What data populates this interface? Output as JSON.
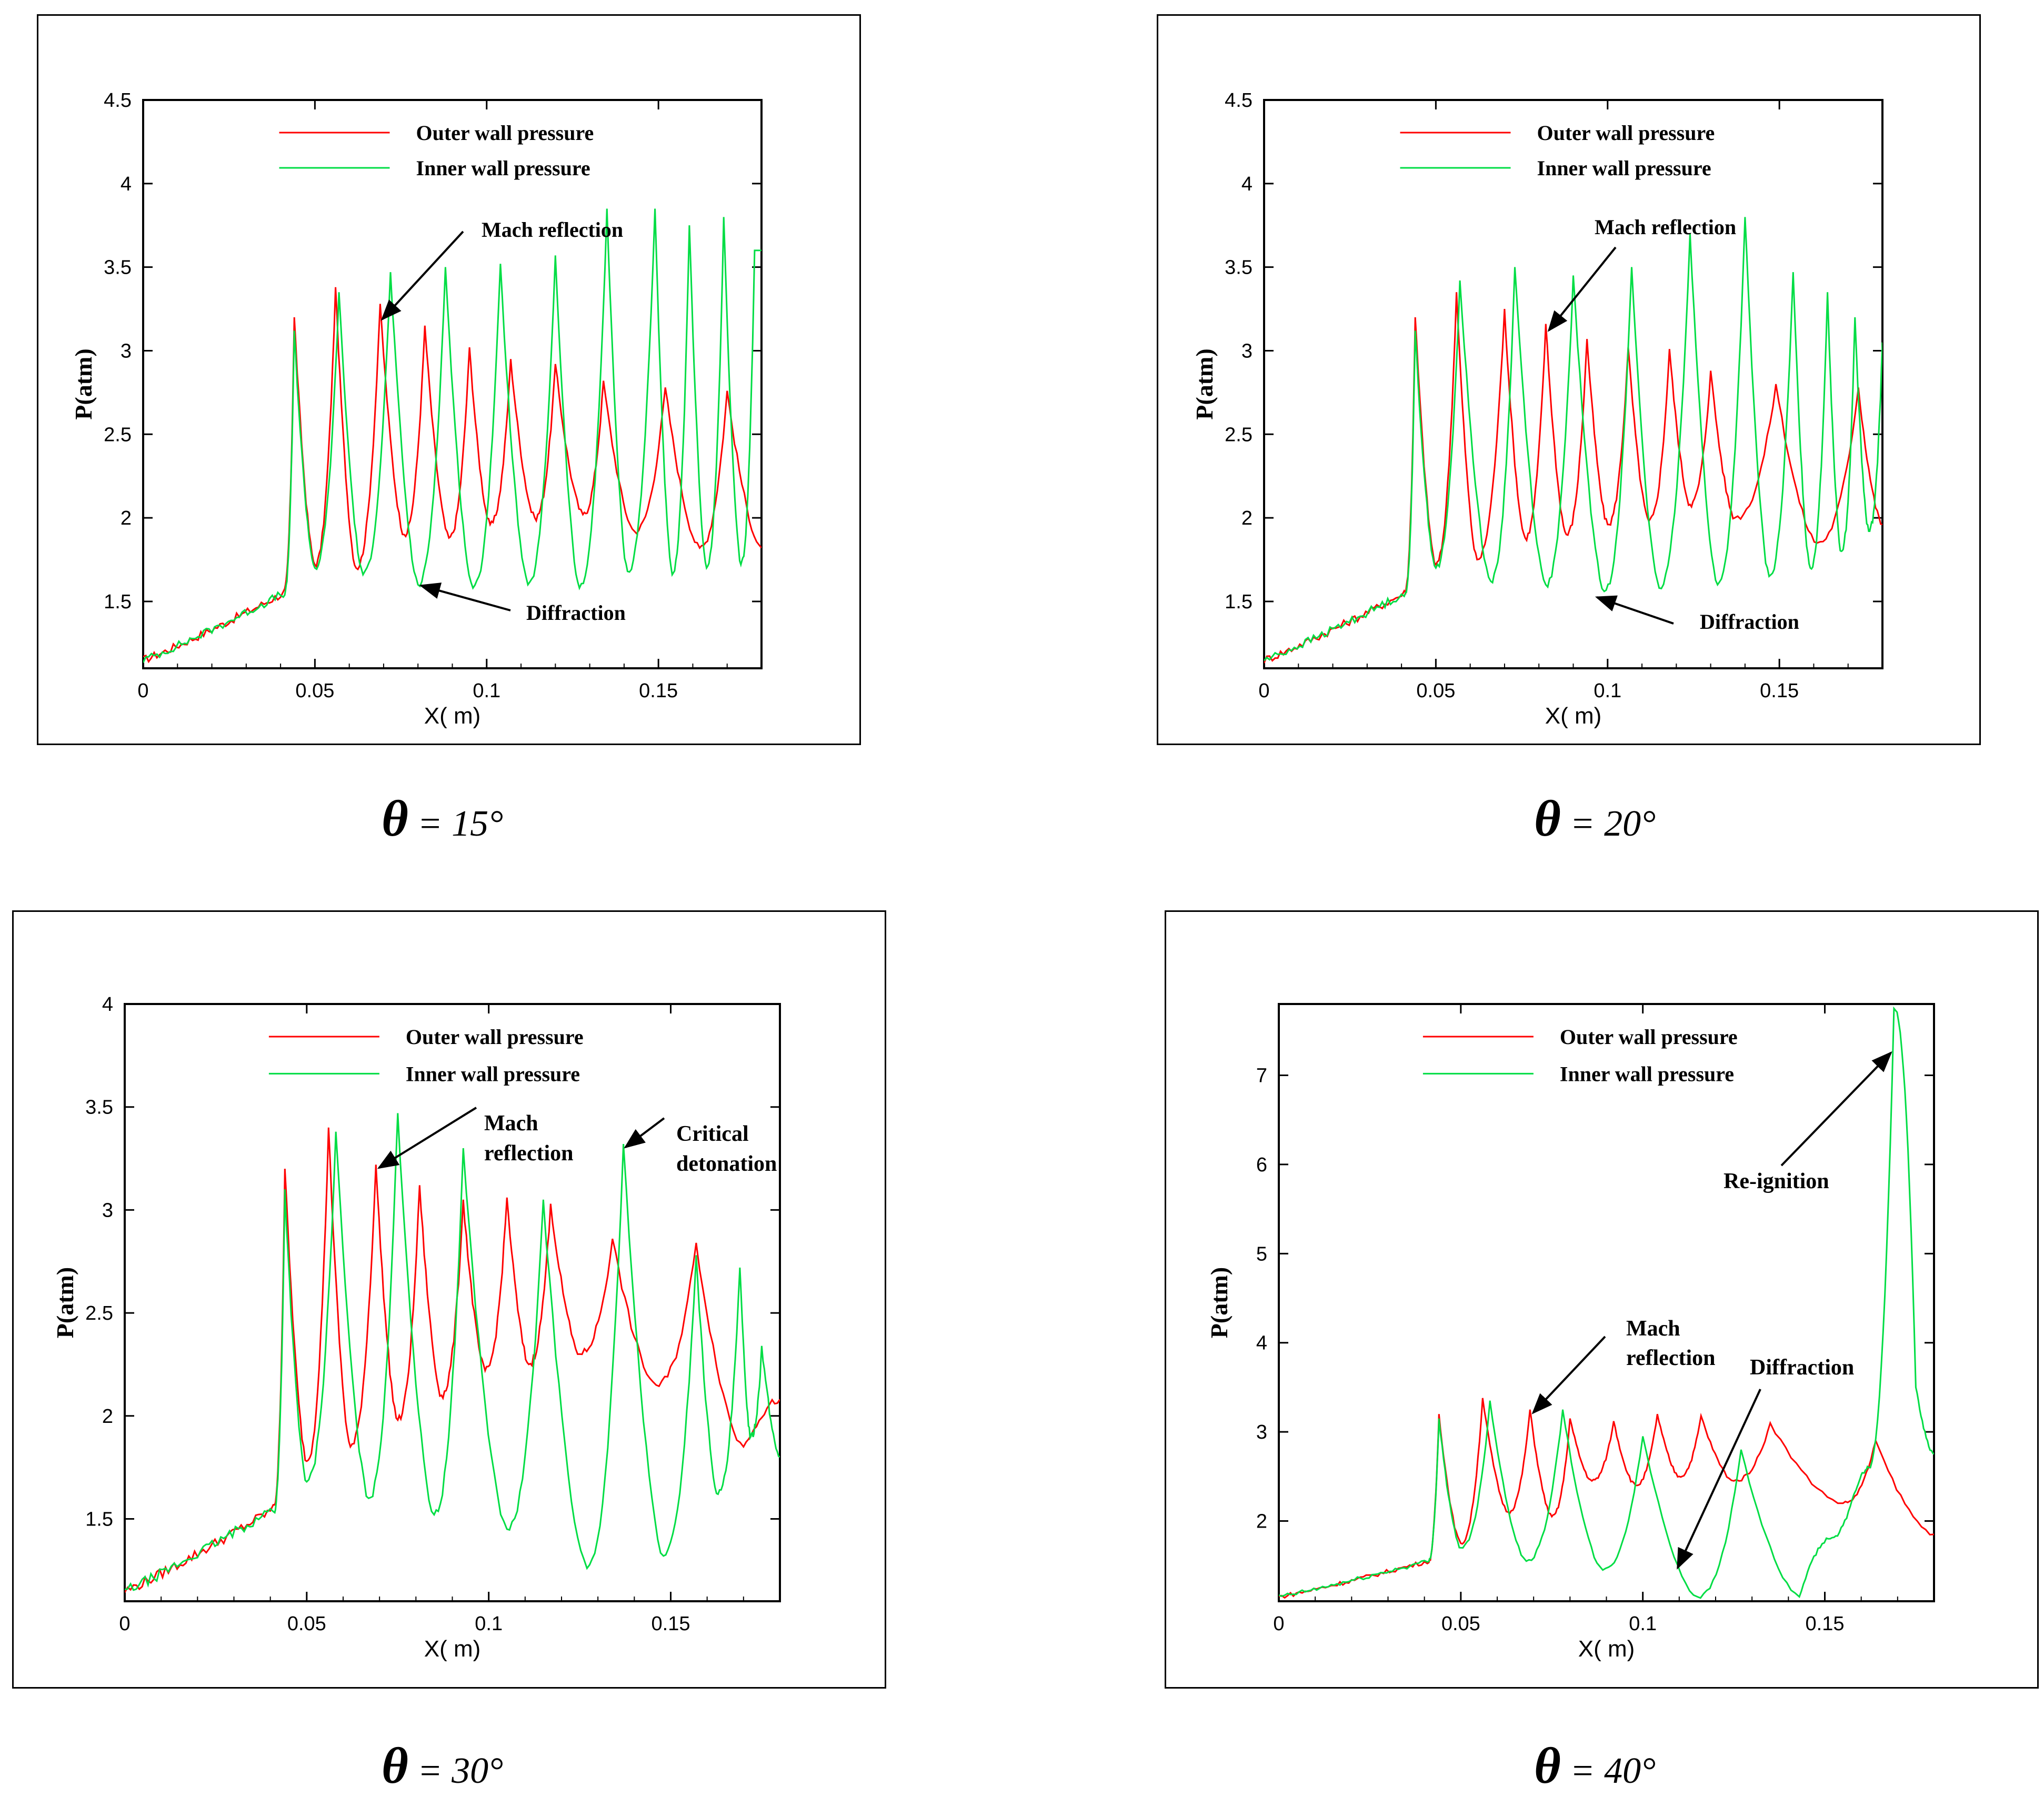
{
  "chart_data": [
    {
      "type": "line",
      "caption_symbol": "θ",
      "caption_value": " = 15°",
      "xlabel": "X( m)",
      "ylabel": "P(atm)",
      "xlim": [
        0,
        0.18
      ],
      "ylim": [
        1.1,
        4.5
      ],
      "xticks": [
        0,
        0.05,
        0.1,
        0.15
      ],
      "xtick_labels": [
        "0",
        "0.05",
        "0.1",
        "0.15"
      ],
      "yticks": [
        1.5,
        2,
        2.5,
        3,
        3.5,
        4,
        4.5
      ],
      "ytick_labels": [
        "1.5",
        "2",
        "2.5",
        "3",
        "3.5",
        "4",
        "4.5"
      ],
      "legend": [
        "Outer wall pressure",
        "Inner wall pressure"
      ],
      "series": [
        {
          "name": "Outer wall pressure",
          "color": "#ff0000",
          "peaks": [
            [
              0.044,
              3.2
            ],
            [
              0.056,
              3.38
            ],
            [
              0.069,
              3.28
            ],
            [
              0.082,
              3.15
            ],
            [
              0.095,
              3.02
            ],
            [
              0.107,
              2.95
            ],
            [
              0.12,
              2.92
            ],
            [
              0.134,
              2.82
            ],
            [
              0.152,
              2.78
            ],
            [
              0.17,
              2.76
            ]
          ],
          "troughs": [
            [
              0.05,
              1.72
            ],
            [
              0.062,
              1.7
            ],
            [
              0.076,
              1.9
            ],
            [
              0.089,
              1.88
            ],
            [
              0.101,
              1.96
            ],
            [
              0.114,
              2.0
            ],
            [
              0.128,
              2.02
            ],
            [
              0.143,
              1.92
            ],
            [
              0.162,
              1.82
            ],
            [
              0.18,
              1.82
            ]
          ]
        },
        {
          "name": "Inner wall pressure",
          "color": "#00dd44",
          "peaks": [
            [
              0.044,
              3.12
            ],
            [
              0.057,
              3.35
            ],
            [
              0.072,
              3.47
            ],
            [
              0.088,
              3.5
            ],
            [
              0.104,
              3.52
            ],
            [
              0.12,
              3.57
            ],
            [
              0.135,
              3.85
            ],
            [
              0.149,
              3.85
            ],
            [
              0.159,
              3.75
            ],
            [
              0.169,
              3.8
            ],
            [
              0.178,
              3.6
            ]
          ],
          "troughs": [
            [
              0.05,
              1.7
            ],
            [
              0.064,
              1.66
            ],
            [
              0.08,
              1.6
            ],
            [
              0.096,
              1.58
            ],
            [
              0.112,
              1.6
            ],
            [
              0.127,
              1.58
            ],
            [
              0.141,
              1.68
            ],
            [
              0.154,
              1.66
            ],
            [
              0.164,
              1.7
            ],
            [
              0.174,
              1.72
            ]
          ]
        }
      ],
      "annotations": [
        {
          "text": "Mach reflection",
          "target": [
            0.069,
            3.22
          ]
        },
        {
          "text": "Diffraction",
          "target": [
            0.08,
            1.62
          ]
        }
      ]
    },
    {
      "type": "line",
      "caption_symbol": "θ",
      "caption_value": " = 20°",
      "xlabel": "X( m)",
      "ylabel": "P(atm)",
      "xlim": [
        0,
        0.18
      ],
      "ylim": [
        1.1,
        4.5
      ],
      "xticks": [
        0,
        0.05,
        0.1,
        0.15
      ],
      "xtick_labels": [
        "0",
        "0.05",
        "0.1",
        "0.15"
      ],
      "yticks": [
        1.5,
        2,
        2.5,
        3,
        3.5,
        4,
        4.5
      ],
      "ytick_labels": [
        "1.5",
        "2",
        "2.5",
        "3",
        "3.5",
        "4",
        "4.5"
      ],
      "legend": [
        "Outer wall pressure",
        "Inner wall pressure"
      ],
      "series": [
        {
          "name": "Outer wall pressure",
          "color": "#ff0000",
          "peaks": [
            [
              0.044,
              3.2
            ],
            [
              0.056,
              3.35
            ],
            [
              0.07,
              3.25
            ],
            [
              0.082,
              3.16
            ],
            [
              0.094,
              3.07
            ],
            [
              0.106,
              3.02
            ],
            [
              0.118,
              3.01
            ],
            [
              0.13,
              2.88
            ],
            [
              0.149,
              2.8
            ],
            [
              0.173,
              2.78
            ]
          ],
          "troughs": [
            [
              0.05,
              1.72
            ],
            [
              0.062,
              1.75
            ],
            [
              0.076,
              1.88
            ],
            [
              0.088,
              1.9
            ],
            [
              0.1,
              1.96
            ],
            [
              0.112,
              1.98
            ],
            [
              0.124,
              2.08
            ],
            [
              0.137,
              2.0
            ],
            [
              0.161,
              1.85
            ],
            [
              0.18,
              1.96
            ]
          ]
        },
        {
          "name": "Inner wall pressure",
          "color": "#00dd44",
          "peaks": [
            [
              0.044,
              3.12
            ],
            [
              0.057,
              3.42
            ],
            [
              0.073,
              3.5
            ],
            [
              0.09,
              3.45
            ],
            [
              0.107,
              3.5
            ],
            [
              0.124,
              3.7
            ],
            [
              0.14,
              3.8
            ],
            [
              0.154,
              3.47
            ],
            [
              0.164,
              3.35
            ],
            [
              0.172,
              3.2
            ],
            [
              0.18,
              3.05
            ]
          ],
          "troughs": [
            [
              0.05,
              1.7
            ],
            [
              0.066,
              1.62
            ],
            [
              0.082,
              1.6
            ],
            [
              0.099,
              1.56
            ],
            [
              0.115,
              1.58
            ],
            [
              0.132,
              1.6
            ],
            [
              0.147,
              1.65
            ],
            [
              0.159,
              1.7
            ],
            [
              0.168,
              1.8
            ],
            [
              0.176,
              1.92
            ]
          ]
        }
      ],
      "annotations": [
        {
          "text": "Mach reflection",
          "target": [
            0.082,
            3.16
          ]
        },
        {
          "text": "Diffraction",
          "target": [
            0.096,
            1.55
          ]
        }
      ]
    },
    {
      "type": "line",
      "caption_symbol": "θ",
      "caption_value": " = 30°",
      "xlabel": "X( m)",
      "ylabel": "P(atm)",
      "xlim": [
        0,
        0.18
      ],
      "ylim": [
        1.1,
        4.0
      ],
      "xticks": [
        0,
        0.05,
        0.1,
        0.15
      ],
      "xtick_labels": [
        "0",
        "0.05",
        "0.1",
        "0.15"
      ],
      "yticks": [
        1.5,
        2,
        2.5,
        3,
        3.5,
        4
      ],
      "ytick_labels": [
        "1.5",
        "2",
        "2.5",
        "3",
        "3.5",
        "4"
      ],
      "legend": [
        "Outer wall pressure",
        "Inner wall pressure"
      ],
      "series": [
        {
          "name": "Outer wall pressure",
          "color": "#ff0000",
          "peaks": [
            [
              0.044,
              3.2
            ],
            [
              0.056,
              3.4
            ],
            [
              0.069,
              3.22
            ],
            [
              0.081,
              3.12
            ],
            [
              0.093,
              3.05
            ],
            [
              0.105,
              3.06
            ],
            [
              0.117,
              3.03
            ],
            [
              0.134,
              2.86
            ],
            [
              0.157,
              2.84
            ]
          ],
          "troughs": [
            [
              0.05,
              1.78
            ],
            [
              0.062,
              1.85
            ],
            [
              0.075,
              1.98
            ],
            [
              0.087,
              2.1
            ],
            [
              0.099,
              2.22
            ],
            [
              0.111,
              2.25
            ],
            [
              0.125,
              2.3
            ],
            [
              0.146,
              2.15
            ],
            [
              0.17,
              1.85
            ],
            [
              0.18,
              2.08
            ]
          ]
        },
        {
          "name": "Inner wall pressure",
          "color": "#00dd44",
          "peaks": [
            [
              0.044,
              3.1
            ],
            [
              0.058,
              3.38
            ],
            [
              0.075,
              3.47
            ],
            [
              0.093,
              3.3
            ],
            [
              0.115,
              3.05
            ],
            [
              0.137,
              3.32
            ],
            [
              0.157,
              2.78
            ],
            [
              0.169,
              2.72
            ],
            [
              0.175,
              2.34
            ]
          ],
          "troughs": [
            [
              0.05,
              1.68
            ],
            [
              0.067,
              1.6
            ],
            [
              0.085,
              1.52
            ],
            [
              0.105,
              1.45
            ],
            [
              0.127,
              1.26
            ],
            [
              0.148,
              1.32
            ],
            [
              0.163,
              1.62
            ],
            [
              0.172,
              1.9
            ],
            [
              0.18,
              1.8
            ]
          ]
        }
      ],
      "annotations": [
        {
          "text_lines": [
            "Mach",
            "reflection"
          ],
          "target": [
            0.069,
            3.22
          ]
        },
        {
          "text_lines": [
            "Critical",
            "detonation"
          ],
          "target": [
            0.137,
            3.32
          ]
        }
      ]
    },
    {
      "type": "line",
      "caption_symbol": "θ",
      "caption_value": " = 40°",
      "xlabel": "X( m)",
      "ylabel": "P(atm)",
      "xlim": [
        0,
        0.18
      ],
      "ylim": [
        1.1,
        7.8
      ],
      "xticks": [
        0,
        0.05,
        0.1,
        0.15
      ],
      "xtick_labels": [
        "0",
        "0.05",
        "0.1",
        "0.15"
      ],
      "yticks": [
        2,
        3,
        4,
        5,
        6,
        7
      ],
      "ytick_labels": [
        "2",
        "3",
        "4",
        "5",
        "6",
        "7"
      ],
      "legend": [
        "Outer wall pressure",
        "Inner wall pressure"
      ],
      "series": [
        {
          "name": "Outer wall pressure",
          "color": "#ff0000",
          "peaks": [
            [
              0.044,
              3.2
            ],
            [
              0.056,
              3.38
            ],
            [
              0.069,
              3.25
            ],
            [
              0.08,
              3.15
            ],
            [
              0.092,
              3.12
            ],
            [
              0.104,
              3.2
            ],
            [
              0.116,
              3.18
            ],
            [
              0.135,
              3.1
            ],
            [
              0.164,
              2.9
            ]
          ],
          "troughs": [
            [
              0.05,
              1.75
            ],
            [
              0.063,
              2.1
            ],
            [
              0.075,
              2.05
            ],
            [
              0.086,
              2.45
            ],
            [
              0.098,
              2.4
            ],
            [
              0.11,
              2.5
            ],
            [
              0.125,
              2.45
            ],
            [
              0.155,
              2.2
            ],
            [
              0.18,
              1.85
            ]
          ]
        },
        {
          "name": "Inner wall pressure",
          "color": "#00dd44",
          "peaks": [
            [
              0.044,
              3.15
            ],
            [
              0.058,
              3.35
            ],
            [
              0.078,
              3.25
            ],
            [
              0.1,
              2.95
            ],
            [
              0.127,
              2.8
            ],
            [
              0.158,
              2.3
            ],
            [
              0.169,
              7.75
            ],
            [
              0.175,
              3.5
            ]
          ],
          "troughs": [
            [
              0.05,
              1.7
            ],
            [
              0.068,
              1.55
            ],
            [
              0.089,
              1.45
            ],
            [
              0.115,
              1.15
            ],
            [
              0.143,
              1.15
            ],
            [
              0.151,
              1.8
            ],
            [
              0.162,
              2.6
            ],
            [
              0.18,
              2.75
            ]
          ]
        }
      ],
      "annotations": [
        {
          "text": "Re-ignition",
          "target": [
            0.169,
            7.3
          ]
        },
        {
          "text_lines": [
            "Mach",
            "reflection"
          ],
          "target": [
            0.069,
            3.25
          ]
        },
        {
          "text": "Diffraction",
          "target": [
            0.109,
            1.5
          ]
        }
      ]
    }
  ]
}
